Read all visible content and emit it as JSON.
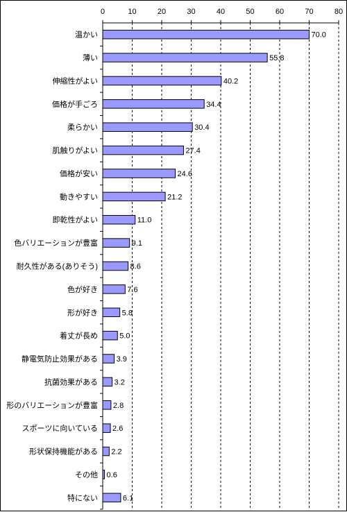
{
  "chart_data": {
    "type": "bar",
    "orientation": "horizontal",
    "title": "",
    "xlabel": "",
    "ylabel": "",
    "xlim": [
      0,
      80
    ],
    "ticks": [
      0,
      10,
      20,
      30,
      40,
      50,
      60,
      70,
      80
    ],
    "tick_position": "top",
    "grid": "vertical-dashed",
    "bar_color": "#9999ff",
    "bar_edge_color": "#000000",
    "categories": [
      "温かい",
      "薄い",
      "伸縮性がよい",
      "価格が手ごろ",
      "柔らかい",
      "肌触りがよい",
      "価格が安い",
      "動きやすい",
      "即乾性がよい",
      "色バリエーションが豊富",
      "耐久性がある(ありそう)",
      "色が好き",
      "形が好き",
      "着丈が長め",
      "静電気防止効果がある",
      "抗菌効果がある",
      "形のバリエーションが豊富",
      "スポーツに向いている",
      "形状保持機能がある",
      "その他",
      "特にない"
    ],
    "values": [
      70.0,
      55.8,
      40.2,
      34.4,
      30.4,
      27.4,
      24.6,
      21.2,
      11.0,
      9.1,
      8.6,
      7.6,
      5.8,
      5.0,
      3.9,
      3.2,
      2.8,
      2.6,
      2.2,
      0.6,
      6.1
    ],
    "value_labels": [
      "70.0",
      "55.8",
      "40.2",
      "34.4",
      "30.4",
      "27.4",
      "24.6",
      "21.2",
      "11.0",
      "9.1",
      "8.6",
      "7.6",
      "5.8",
      "5.0",
      "3.9",
      "3.2",
      "2.8",
      "2.6",
      "2.2",
      "0.6",
      "6.1"
    ]
  }
}
